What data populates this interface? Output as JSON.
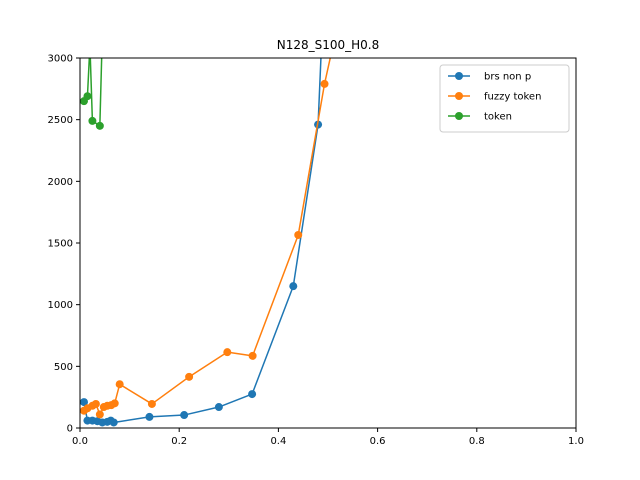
{
  "chart_data": {
    "type": "line",
    "title": "N128_S100_H0.8",
    "xlabel": "",
    "ylabel": "",
    "xlim": [
      0,
      1.0
    ],
    "ylim": [
      0,
      3000
    ],
    "xticks": [
      "0.0",
      "0.2",
      "0.4",
      "0.6",
      "0.8",
      "1.0"
    ],
    "xtick_values": [
      0,
      0.2,
      0.4,
      0.6,
      0.8,
      1.0
    ],
    "yticks": [
      "0",
      "500",
      "1000",
      "1500",
      "2000",
      "2500",
      "3000"
    ],
    "ytick_values": [
      0,
      500,
      1000,
      1500,
      2000,
      2500,
      3000
    ],
    "grid": false,
    "legend_position": "top-right",
    "series": [
      {
        "name": "brs non p",
        "color": "#1f77b4",
        "x": [
          0.008,
          0.015,
          0.025,
          0.035,
          0.045,
          0.055,
          0.062,
          0.068,
          0.14,
          0.21,
          0.28,
          0.347,
          0.43,
          0.48,
          0.49
        ],
        "y": [
          210,
          60,
          60,
          55,
          45,
          50,
          60,
          45,
          90,
          105,
          170,
          275,
          1150,
          2460,
          3400
        ]
      },
      {
        "name": "fuzzy token",
        "color": "#ff7f0e",
        "x": [
          0.008,
          0.015,
          0.025,
          0.032,
          0.04,
          0.048,
          0.055,
          0.063,
          0.07,
          0.08,
          0.145,
          0.22,
          0.297,
          0.348,
          0.44,
          0.493,
          0.51
        ],
        "y": [
          140,
          160,
          180,
          195,
          110,
          170,
          180,
          185,
          200,
          355,
          195,
          415,
          615,
          585,
          1565,
          2790,
          3100
        ]
      },
      {
        "name": "token",
        "color": "#2ca02c",
        "x": [
          0.008,
          0.015,
          0.02,
          0.025,
          0.04,
          0.045
        ],
        "y": [
          2650,
          2690,
          3100,
          2490,
          2450,
          3200
        ]
      }
    ]
  }
}
